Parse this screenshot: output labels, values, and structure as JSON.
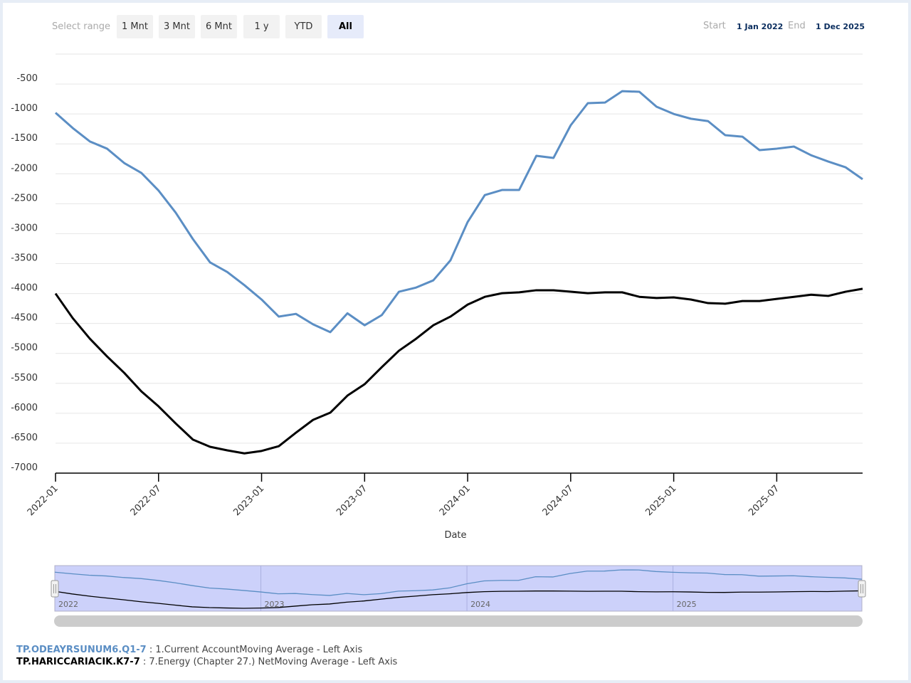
{
  "range_selector": {
    "label": "Select range",
    "buttons": [
      "1 Mnt",
      "3 Mnt",
      "6 Mnt",
      "1 y",
      "YTD",
      "All"
    ],
    "selected": 5,
    "start_label": "Start",
    "start": "1 Jan 2022",
    "end_label": "End",
    "end": "1 Dec 2025"
  },
  "chart_data": {
    "type": "line",
    "x_label": "Date",
    "x": [
      "2022-01",
      "2022-02",
      "2022-03",
      "2022-04",
      "2022-05",
      "2022-06",
      "2022-07",
      "2022-08",
      "2022-09",
      "2022-10",
      "2022-11",
      "2022-12",
      "2023-01",
      "2023-02",
      "2023-03",
      "2023-04",
      "2023-05",
      "2023-06",
      "2023-07",
      "2023-08",
      "2023-09",
      "2023-10",
      "2023-11",
      "2023-12",
      "2024-01",
      "2024-02",
      "2024-03",
      "2024-04",
      "2024-05",
      "2024-06",
      "2024-07",
      "2024-08",
      "2024-09",
      "2024-10",
      "2024-11",
      "2024-12",
      "2025-01",
      "2025-02",
      "2025-03",
      "2025-04",
      "2025-05",
      "2025-06",
      "2025-07",
      "2025-08",
      "2025-09",
      "2025-10",
      "2025-11",
      "2025-12"
    ],
    "xticks": [
      "2022-01",
      "2022-07",
      "2023-01",
      "2023-07",
      "2024-01",
      "2024-07",
      "2025-01",
      "2025-07"
    ],
    "ylim": [
      -7000,
      0
    ],
    "yticks": [
      -7000,
      -6500,
      -6000,
      -5500,
      -5000,
      -4500,
      -4000,
      -3500,
      -3000,
      -2500,
      -2000,
      -1500,
      -1000,
      -500
    ],
    "grid": true,
    "series": [
      {
        "name": "TP.ODEAYRSUNUM6.Q1-7",
        "description": ": 1.Current AccountMoving Average - Left Axis",
        "color": "#5b8ec4",
        "values": [
          -980,
          -1235,
          -1460,
          -1580,
          -1820,
          -1985,
          -2280,
          -2650,
          -3090,
          -3480,
          -3640,
          -3860,
          -4100,
          -4385,
          -4340,
          -4515,
          -4645,
          -4330,
          -4530,
          -4360,
          -3970,
          -3900,
          -3780,
          -3445,
          -2805,
          -2355,
          -2270,
          -2270,
          -1700,
          -1735,
          -1190,
          -820,
          -810,
          -620,
          -630,
          -880,
          -1000,
          -1080,
          -1120,
          -1355,
          -1380,
          -1605,
          -1580,
          -1545,
          -1690,
          -1795,
          -1890,
          -2090
        ]
      },
      {
        "name": "TP.HARICCARIACIK.K7-7",
        "description": ": 7.Energy (Chapter 27.) NetMoving Average - Left Axis",
        "color": "#000000",
        "values": [
          -4000,
          -4410,
          -4755,
          -5050,
          -5325,
          -5635,
          -5885,
          -6170,
          -6440,
          -6560,
          -6620,
          -6670,
          -6630,
          -6550,
          -6325,
          -6110,
          -5990,
          -5705,
          -5515,
          -5230,
          -4955,
          -4755,
          -4530,
          -4385,
          -4185,
          -4055,
          -3995,
          -3980,
          -3945,
          -3945,
          -3970,
          -3995,
          -3980,
          -3980,
          -4055,
          -4075,
          -4065,
          -4100,
          -4160,
          -4170,
          -4125,
          -4125,
          -4090,
          -4055,
          -4020,
          -4040,
          -3970,
          -3920
        ]
      }
    ]
  },
  "navigator": {
    "labels": [
      {
        "at": "2022-01",
        "text": "2022"
      },
      {
        "at": "2023-01",
        "text": "2023"
      },
      {
        "at": "2024-01",
        "text": "2024"
      },
      {
        "at": "2025-01",
        "text": "2025"
      }
    ]
  }
}
